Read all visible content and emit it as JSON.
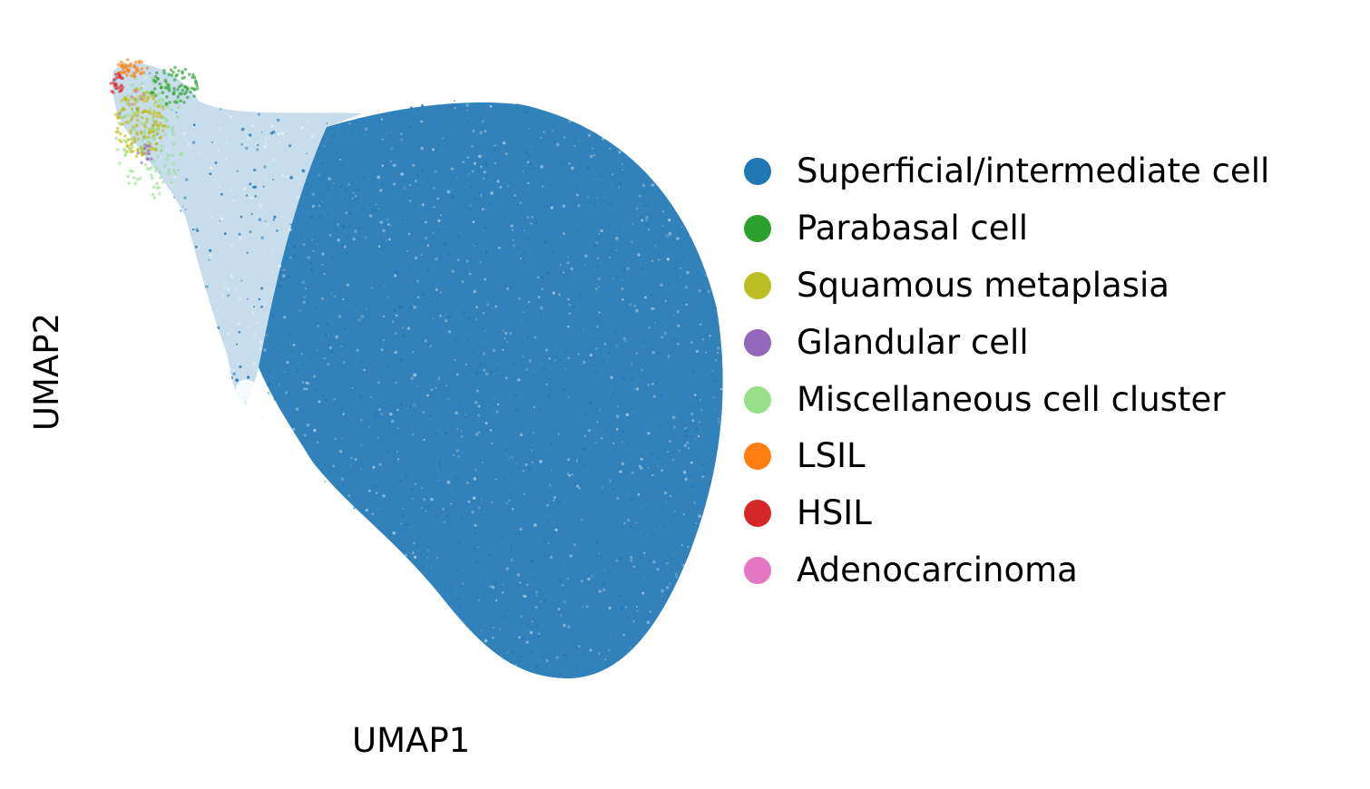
{
  "chart_data": {
    "type": "scatter",
    "title": "",
    "xlabel": "UMAP1",
    "ylabel": "UMAP2",
    "axes_visible": false,
    "grid": false,
    "legend_placement": "right",
    "series": [
      {
        "name": "Superficial/intermediate cell",
        "color": "#1f77b4",
        "relative_size": "dominant",
        "region": "large main body"
      },
      {
        "name": "Parabasal cell",
        "color": "#2ca02c",
        "relative_size": "small",
        "region": "upper-left tip"
      },
      {
        "name": "Squamous metaplasia",
        "color": "#bcbd22",
        "relative_size": "small",
        "region": "upper-left tip"
      },
      {
        "name": "Glandular cell",
        "color": "#9467bd",
        "relative_size": "tiny",
        "region": "upper-left tip"
      },
      {
        "name": "Miscellaneous cell cluster",
        "color": "#98df8a",
        "relative_size": "small",
        "region": "upper-left tip"
      },
      {
        "name": "LSIL",
        "color": "#ff7f0e",
        "relative_size": "tiny",
        "region": "upper-left tip"
      },
      {
        "name": "HSIL",
        "color": "#d62728",
        "relative_size": "tiny",
        "region": "upper-left tip"
      },
      {
        "name": "Adenocarcinoma",
        "color": "#e377c2",
        "relative_size": "tiny",
        "region": "upper-left tip"
      }
    ]
  }
}
